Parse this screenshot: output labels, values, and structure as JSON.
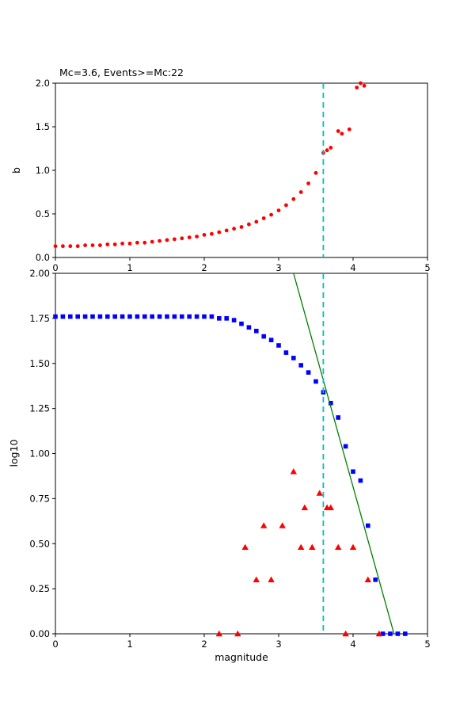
{
  "figure": {
    "background": "#ffffff",
    "text_color": "#000000"
  },
  "chart_data": [
    {
      "type": "scatter",
      "title": "Mc=3.6, Events>=Mc:22",
      "xlabel": "",
      "ylabel": "b",
      "xlim": [
        0,
        5
      ],
      "ylim": [
        0,
        2
      ],
      "grid": false,
      "legend": "none",
      "xtick_values": [
        0,
        1,
        2,
        3,
        4,
        5
      ],
      "xtick_labels": [
        "0",
        "1",
        "2",
        "3",
        "4",
        "5"
      ],
      "ytick_values": [
        0,
        0.5,
        1,
        1.5,
        2
      ],
      "ytick_labels": [
        "0.0",
        "0.5",
        "1.0",
        "1.5",
        "2.0"
      ],
      "series": [
        {
          "name": "b-value-vs-cutoff-magnitude",
          "kind": "scatter",
          "marker": "circle",
          "color": "#ff0000",
          "x": [
            0,
            0.1,
            0.2,
            0.3,
            0.4,
            0.5,
            0.6,
            0.7,
            0.8,
            0.9,
            1,
            1.1,
            1.2,
            1.3,
            1.4,
            1.5,
            1.6,
            1.7,
            1.8,
            1.9,
            2,
            2.1,
            2.2,
            2.3,
            2.4,
            2.5,
            2.6,
            2.7,
            2.8,
            2.9,
            3,
            3.1,
            3.2,
            3.3,
            3.4,
            3.5,
            3.6,
            3.65,
            3.7,
            3.8,
            3.85,
            3.95,
            4.05,
            4.1,
            4.15
          ],
          "y": [
            0.13,
            0.13,
            0.13,
            0.13,
            0.14,
            0.14,
            0.14,
            0.15,
            0.15,
            0.16,
            0.16,
            0.17,
            0.17,
            0.18,
            0.19,
            0.2,
            0.21,
            0.22,
            0.23,
            0.24,
            0.26,
            0.27,
            0.29,
            0.31,
            0.33,
            0.35,
            0.38,
            0.41,
            0.45,
            0.49,
            0.54,
            0.6,
            0.67,
            0.75,
            0.85,
            0.97,
            1.2,
            1.23,
            1.26,
            1.45,
            1.42,
            1.47,
            1.95,
            2,
            1.97
          ]
        },
        {
          "name": "mc-cutoff-vline",
          "kind": "vline",
          "x": 3.6,
          "color": "#00bfbf",
          "dash": "7,5",
          "width": 1.8
        }
      ]
    },
    {
      "type": "scatter",
      "title": "",
      "xlabel": "magnitude",
      "ylabel": "log10",
      "xlim": [
        0,
        5
      ],
      "ylim": [
        0,
        2
      ],
      "grid": false,
      "legend": "none",
      "xtick_values": [
        0,
        1,
        2,
        3,
        4,
        5
      ],
      "xtick_labels": [
        "0",
        "1",
        "2",
        "3",
        "4",
        "5"
      ],
      "ytick_values": [
        0,
        0.25,
        0.5,
        0.75,
        1,
        1.25,
        1.5,
        1.75,
        2
      ],
      "ytick_labels": [
        "0.00",
        "0.25",
        "0.50",
        "0.75",
        "1.00",
        "1.25",
        "1.50",
        "1.75",
        "2.00"
      ],
      "series": [
        {
          "name": "cumulative-event-counts",
          "kind": "scatter",
          "marker": "square",
          "color": "#0000ff",
          "x": [
            0,
            0.1,
            0.2,
            0.3,
            0.4,
            0.5,
            0.6,
            0.7,
            0.8,
            0.9,
            1,
            1.1,
            1.2,
            1.3,
            1.4,
            1.5,
            1.6,
            1.7,
            1.8,
            1.9,
            2,
            2.1,
            2.2,
            2.3,
            2.4,
            2.5,
            2.6,
            2.7,
            2.8,
            2.9,
            3,
            3.1,
            3.2,
            3.3,
            3.4,
            3.5,
            3.6,
            3.7,
            3.8,
            3.9,
            4,
            4.1,
            4.2,
            4.3,
            4.4,
            4.5,
            4.6,
            4.7
          ],
          "y": [
            1.76,
            1.76,
            1.76,
            1.76,
            1.76,
            1.76,
            1.76,
            1.76,
            1.76,
            1.76,
            1.76,
            1.76,
            1.76,
            1.76,
            1.76,
            1.76,
            1.76,
            1.76,
            1.76,
            1.76,
            1.76,
            1.76,
            1.75,
            1.75,
            1.74,
            1.72,
            1.7,
            1.68,
            1.65,
            1.63,
            1.6,
            1.56,
            1.53,
            1.49,
            1.45,
            1.4,
            1.34,
            1.28,
            1.2,
            1.04,
            0.9,
            0.85,
            0.6,
            0.3,
            0,
            0,
            0,
            0
          ]
        },
        {
          "name": "per-bin-event-counts",
          "kind": "scatter",
          "marker": "triangle",
          "color": "#ff0000",
          "x": [
            2.2,
            2.45,
            2.55,
            2.7,
            2.8,
            2.9,
            3.05,
            3.2,
            3.3,
            3.35,
            3.45,
            3.55,
            3.65,
            3.7,
            3.8,
            3.9,
            4,
            4.2,
            4.35
          ],
          "y": [
            0,
            0,
            0.48,
            0.3,
            0.6,
            0.3,
            0.6,
            0.9,
            0.48,
            0.7,
            0.48,
            0.78,
            0.7,
            0.7,
            0.48,
            0,
            0.48,
            0.3,
            0
          ]
        },
        {
          "name": "gutenberg-richter-fit-line",
          "kind": "line",
          "color": "#008000",
          "width": 1.3,
          "x": [
            3.2,
            4.55
          ],
          "y": [
            2,
            0
          ]
        },
        {
          "name": "mc-cutoff-vline",
          "kind": "vline",
          "x": 3.6,
          "color": "#00bfbf",
          "dash": "7,5",
          "width": 1.8
        }
      ]
    }
  ]
}
